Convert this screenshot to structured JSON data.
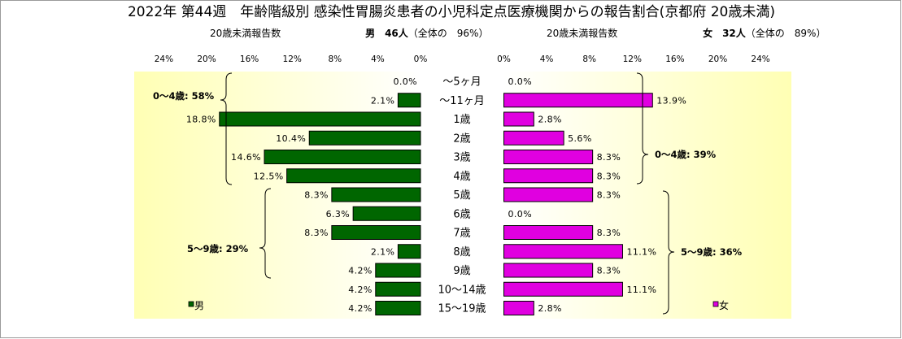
{
  "chart_data": {
    "type": "bar",
    "orientation": "horizontal",
    "arrangement": "back-to-back",
    "title": "2022年 第44週　年齢階級別 感染性胃腸炎患者の小児科定点医療機関からの報告割合(京都府 20歳未満)",
    "categories": [
      "～5ヶ月",
      "～11ヶ月",
      "1歳",
      "2歳",
      "3歳",
      "4歳",
      "5歳",
      "6歳",
      "7歳",
      "8歳",
      "9歳",
      "10～14歳",
      "15～19歳"
    ],
    "xlim": [
      0,
      24
    ],
    "xticks": [
      0,
      4,
      8,
      12,
      16,
      20,
      24
    ],
    "value_suffix": "%",
    "grid": false,
    "plot_background": {
      "outer": "#FFFFB4",
      "inner": "#FFFFFF"
    },
    "bar_outline": "#000000",
    "series": [
      {
        "name": "男",
        "side": "left",
        "color": "#006600",
        "legend_placement": "bottom-left",
        "header_label": "20歳未満報告数",
        "header_count": "男　46人",
        "header_share": "（全体の　96%）",
        "values": [
          0.0,
          2.1,
          18.8,
          10.4,
          14.6,
          12.5,
          8.3,
          6.3,
          8.3,
          2.1,
          4.2,
          4.2,
          4.2
        ],
        "group_annotations": [
          "0～4歳: 58%",
          "5～9歳: 29%"
        ]
      },
      {
        "name": "女",
        "side": "right",
        "color": "#E000E0",
        "legend_placement": "bottom-right",
        "header_label": "20歳未満報告数",
        "header_count": "女　32人",
        "header_share": "（全体の　89%）",
        "values": [
          0.0,
          13.9,
          2.8,
          5.6,
          8.3,
          8.3,
          8.3,
          0.0,
          8.3,
          11.1,
          8.3,
          11.1,
          2.8
        ],
        "group_annotations": [
          "0～4歳: 39%",
          "5～9歳: 36%"
        ]
      }
    ]
  }
}
